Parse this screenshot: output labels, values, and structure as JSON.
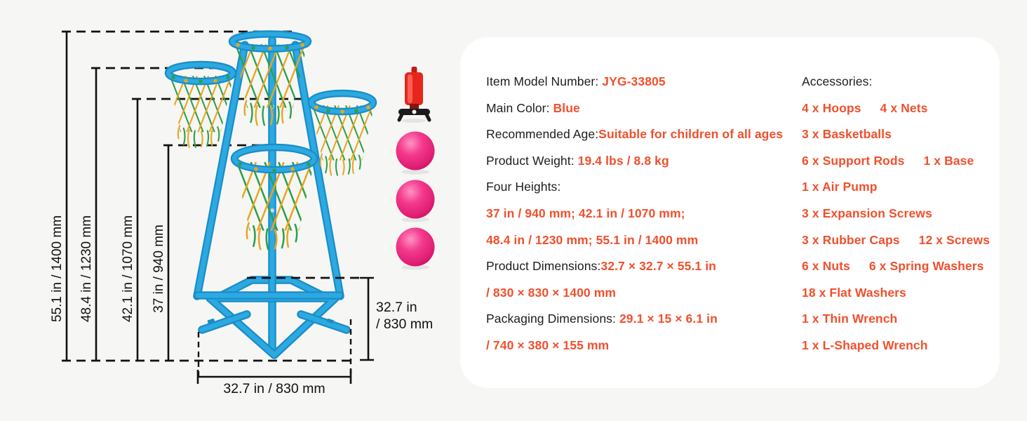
{
  "colors": {
    "background": "#f6f6f4",
    "card": "#ffffff",
    "text": "#1d1d1f",
    "accent": "#f0502d",
    "dimension": "#111111",
    "stand_blue": "#2ca9e1",
    "stand_blue_dark": "#1a8dc7",
    "net_green": "#2aa04a",
    "net_yellow": "#eaa51e",
    "ball_pink": "#ee2f80",
    "pump_red": "#e6261c"
  },
  "diagram": {
    "height_labels": [
      "55.1 in / 1400 mm",
      "48.4 in / 1230 mm",
      "42.1 in / 1070 mm",
      "37 in / 940 mm"
    ],
    "base_width_label": "32.7 in / 830 mm",
    "base_depth_label": [
      "32.7 in",
      "/ 830 mm"
    ],
    "accessories": [
      "air-pump",
      "basketball",
      "basketball",
      "basketball"
    ]
  },
  "specs": {
    "left_column": [
      [
        {
          "t": "Item Model Number: "
        },
        {
          "t": "JYG-33805",
          "a": true
        }
      ],
      [
        {
          "t": "Main Color: "
        },
        {
          "t": "Blue",
          "a": true
        }
      ],
      [
        {
          "t": "Recommended Age:"
        },
        {
          "t": "Suitable for children of all ages",
          "a": true
        }
      ],
      [
        {
          "t": "Product Weight: "
        },
        {
          "t": "19.4 lbs / 8.8 kg",
          "a": true
        }
      ],
      [
        {
          "t": "Four Heights:"
        }
      ],
      [
        {
          "t": "37 in / 940 mm; 42.1 in / 1070 mm;",
          "a": true
        }
      ],
      [
        {
          "t": "48.4 in / 1230 mm; 55.1 in / 1400 mm",
          "a": true
        }
      ],
      [
        {
          "t": "Product Dimensions:"
        },
        {
          "t": "32.7 × 32.7 × 55.1 in",
          "a": true
        }
      ],
      [
        {
          "t": "/ 830 × 830 × 1400 mm",
          "a": true
        }
      ],
      [
        {
          "t": "Packaging Dimensions: "
        },
        {
          "t": "29.1 × 15 × 6.1 in",
          "a": true
        }
      ],
      [
        {
          "t": "/ 740 × 380 × 155 mm",
          "a": true
        }
      ]
    ],
    "right_column": [
      [
        {
          "t": "Accessories:"
        }
      ],
      [
        {
          "t": "4 x Hoops",
          "a": true
        },
        {
          "t": "4 x Nets",
          "a": true,
          "gap": true
        }
      ],
      [
        {
          "t": "3 x Basketballs",
          "a": true
        }
      ],
      [
        {
          "t": "6 x Support Rods",
          "a": true
        },
        {
          "t": "1 x Base",
          "a": true,
          "gap": true
        }
      ],
      [
        {
          "t": "1 x Air Pump",
          "a": true
        }
      ],
      [
        {
          "t": "3 x Expansion Screws",
          "a": true
        }
      ],
      [
        {
          "t": "3 x Rubber Caps",
          "a": true
        },
        {
          "t": "12 x Screws",
          "a": true,
          "gap": true
        }
      ],
      [
        {
          "t": "6 x Nuts",
          "a": true
        },
        {
          "t": "6 x Spring Washers",
          "a": true,
          "gap": true
        }
      ],
      [
        {
          "t": "18 x Flat Washers",
          "a": true
        }
      ],
      [
        {
          "t": "1 x Thin Wrench",
          "a": true
        }
      ],
      [
        {
          "t": "1 x L-Shaped Wrench",
          "a": true
        }
      ]
    ]
  }
}
